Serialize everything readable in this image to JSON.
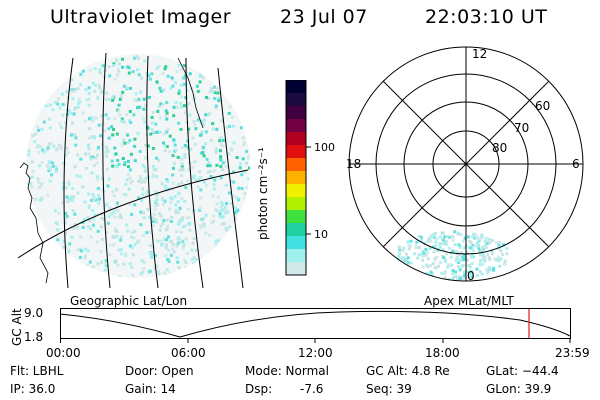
{
  "header": {
    "instrument": "Ultraviolet Imager",
    "date": "23 Jul 07",
    "time": "22:03:10 UT"
  },
  "geo_panel": {
    "label": "Geographic Lat/Lon"
  },
  "colorbar": {
    "unit_label": "photon cm⁻²s⁻¹",
    "ticks": [
      "100",
      "10"
    ],
    "colors": [
      "#000033",
      "#1a0a40",
      "#400040",
      "#700040",
      "#b00020",
      "#e01010",
      "#ff6000",
      "#ffb000",
      "#f0f000",
      "#b0f000",
      "#40e040",
      "#20d0a0",
      "#40e0e0",
      "#a0f0f0",
      "#d0e8e8"
    ]
  },
  "polar_panel": {
    "label": "Apex MLat/MLT",
    "mlt_labels": [
      "12",
      "18",
      "6",
      "0"
    ],
    "lat_labels": [
      "60",
      "70",
      "80"
    ]
  },
  "altitude_plot": {
    "ylabel": "GC Alt",
    "y_ticks": [
      "9.0",
      "1.8"
    ],
    "x_ticks": [
      "00:00",
      "06:00",
      "12:00",
      "18:00",
      "23:59"
    ],
    "marker_color": "#e02020"
  },
  "info": {
    "flt": "Flt: LBHL",
    "ip": "IP: 36.0",
    "door": "Door: Open",
    "gain": "Gain: 14",
    "mode": "Mode: Normal",
    "dsp": "Dsp:",
    "dsp_value": "-7.6",
    "gc_alt": "GC Alt: 4.8 Re",
    "seq": "Seq: 39",
    "glat": "GLat: −44.4",
    "glon": "GLon: 39.9"
  }
}
